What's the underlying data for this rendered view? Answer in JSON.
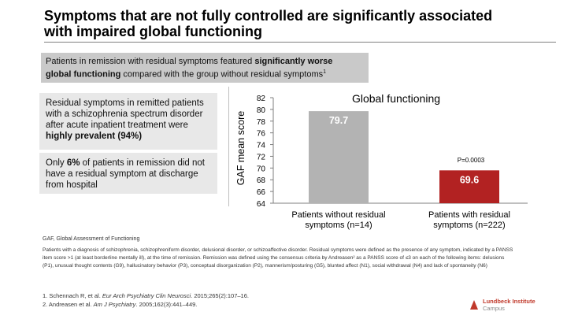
{
  "slide": {
    "title_line1": "Symptoms that are not fully controlled are significantly associated",
    "title_line2": "with impaired global functioning",
    "banner": {
      "part1": "Patients in remission with residual symptoms featured ",
      "bold1": "significantly worse",
      "bold2": "global functioning",
      "part2": " compared with the group without residual symptoms",
      "sup": "1"
    },
    "box1": {
      "text": "Residual symptoms in remitted patients with a schizophrenia spectrum disorder after acute inpatient treatment were ",
      "bold": "highly prevalent (94%)"
    },
    "box2": {
      "text1": "Only ",
      "bold": "6%",
      "text2": " of patients in remission did not have a residual symptom at discharge from hospital"
    },
    "abbrev": "GAF, Global Assessment of Functioning",
    "footnote": "Patients with a diagnosis of schizophrenia, schizophreniform disorder, delusional disorder, or schizoaffective disorder. Residual symptoms were defined as the presence of any symptom, indicated by a PANSS item score >1 (at least borderline mentally ill), at the time of remission. Remission was defined using the consensus criteria by Andreasen² as a PANSS score of ≤3 on each of the following items: delusions (P1), unusual thought contents (G9), hallucinatory behavior (P3), conceptual disorganization (P2), mannerism/posturing (G5), blunted affect (N1), social withdrawal (N4) and lack of spontaneity (N6)",
    "ref1_a": "1. Schennach R, et al. ",
    "ref1_j": "Eur Arch Psychiatry Clin Neurosci",
    "ref1_b": ". 2015;265(2):107–16.",
    "ref2_a": "2. Andreasen et al. ",
    "ref2_j": "Am J Psychiatry",
    "ref2_b": ". 2005;162(3):441–449.",
    "logo_line1": "Lundbeck Institute",
    "logo_line2": "Campus"
  },
  "chart_data": {
    "type": "bar",
    "title": "Global functioning",
    "ylabel": "GAF mean score",
    "xlabel": "",
    "ylim": [
      64,
      82
    ],
    "yticks": [
      64,
      66,
      68,
      70,
      72,
      74,
      76,
      78,
      80,
      82
    ],
    "categories": [
      "Patients without residual symptoms (n=14)",
      "Patients with residual symptoms (n=222)"
    ],
    "category_lines": [
      [
        "Patients without residual",
        "symptoms (n=14)"
      ],
      [
        "Patients with residual",
        "symptoms (n=222)"
      ]
    ],
    "values": [
      79.7,
      69.6
    ],
    "value_labels": [
      "79.7",
      "69.6"
    ],
    "colors": [
      "#b3b3b3",
      "#b22222"
    ],
    "annotation": "P=0.0003"
  }
}
